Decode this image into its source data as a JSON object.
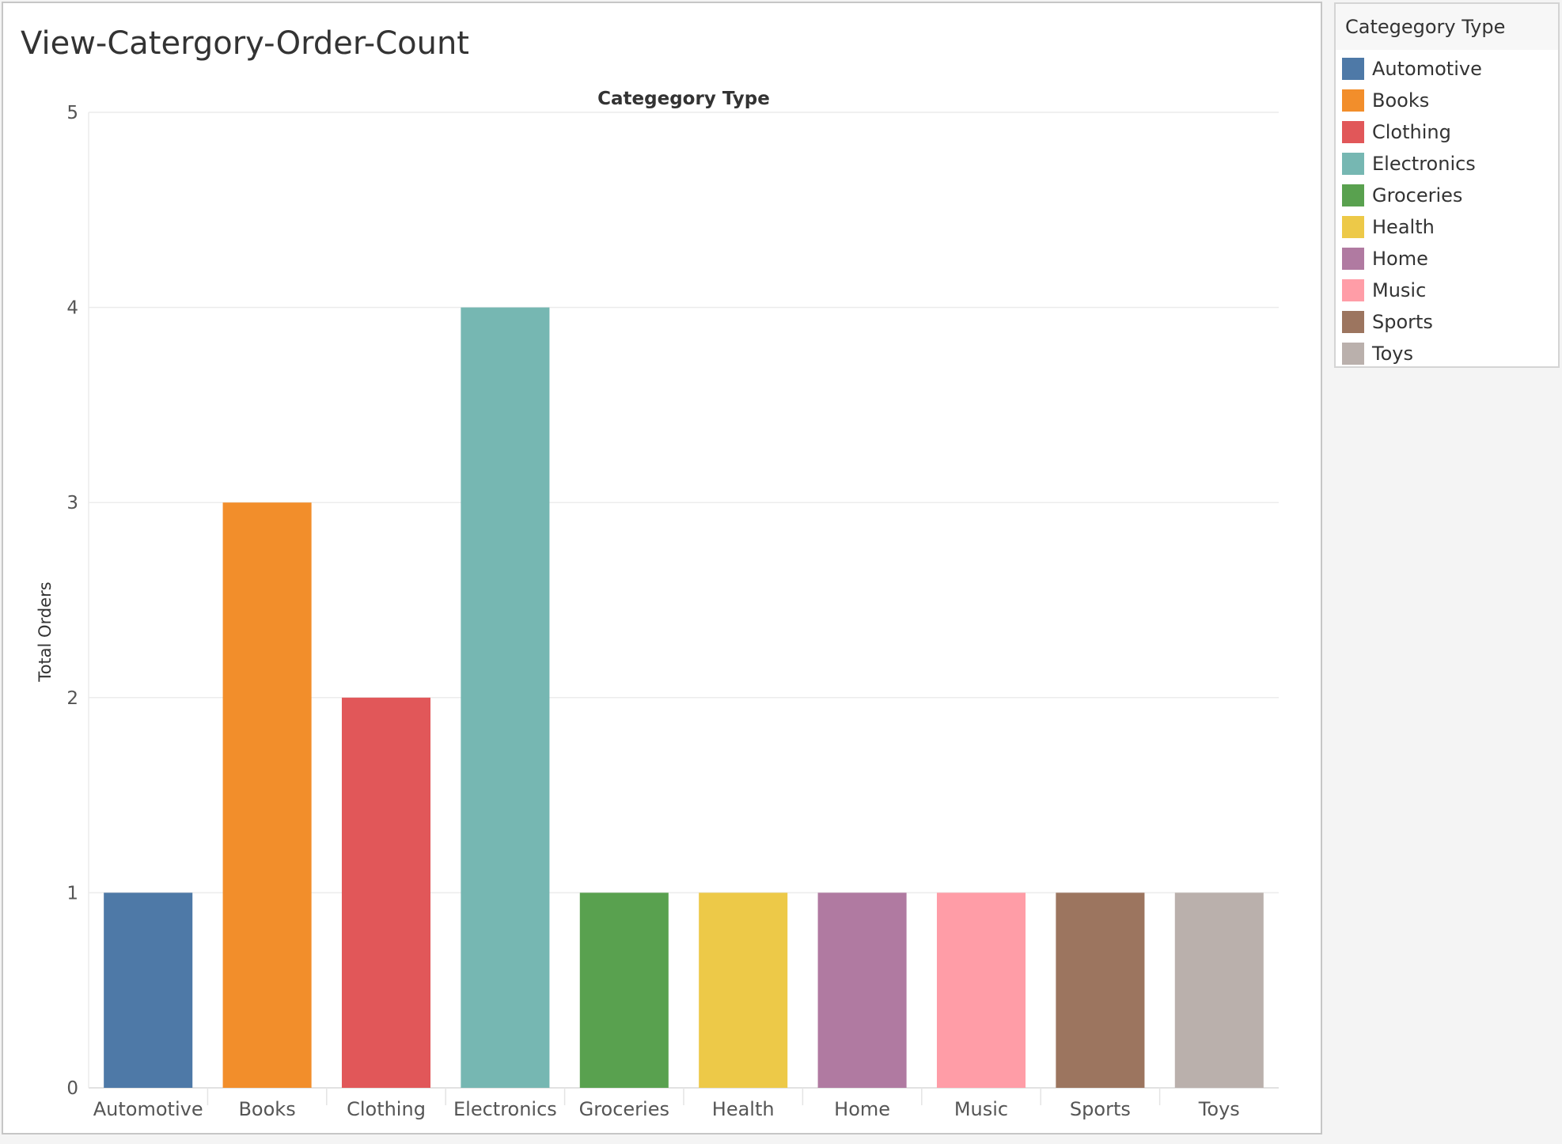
{
  "view": {
    "title": "View-Catergory-Order-Count"
  },
  "legend": {
    "title": "Categegory Type"
  },
  "chart_data": {
    "type": "bar",
    "title": "Categegory Type",
    "xlabel": "",
    "ylabel": "Total Orders",
    "ylim": [
      0,
      5
    ],
    "yticks": [
      0,
      1,
      2,
      3,
      4,
      5
    ],
    "grid": true,
    "legend_position": "right",
    "categories": [
      "Automotive",
      "Books",
      "Clothing",
      "Electronics",
      "Groceries",
      "Health",
      "Home",
      "Music",
      "Sports",
      "Toys"
    ],
    "values": [
      1,
      3,
      2,
      4,
      1,
      1,
      1,
      1,
      1,
      1
    ],
    "colors": [
      "#4e79a7",
      "#f28e2b",
      "#e15759",
      "#76b7b2",
      "#59a14f",
      "#edc948",
      "#b07aa1",
      "#ff9da7",
      "#9c755f",
      "#bab0ac"
    ]
  }
}
